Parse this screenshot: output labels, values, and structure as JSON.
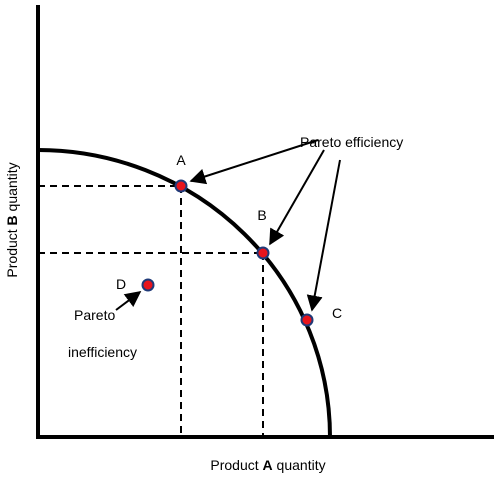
{
  "axes": {
    "x_label": [
      "Product ",
      "A",
      " quantity"
    ],
    "y_label": [
      "Product ",
      "B",
      " quantity"
    ]
  },
  "points": [
    {
      "label": "A"
    },
    {
      "label": "B"
    },
    {
      "label": "C"
    },
    {
      "label": "D"
    }
  ],
  "annotations": {
    "efficiency": "Pareto efficiency",
    "inefficiency": [
      "Pareto",
      "inefficiency"
    ]
  }
}
